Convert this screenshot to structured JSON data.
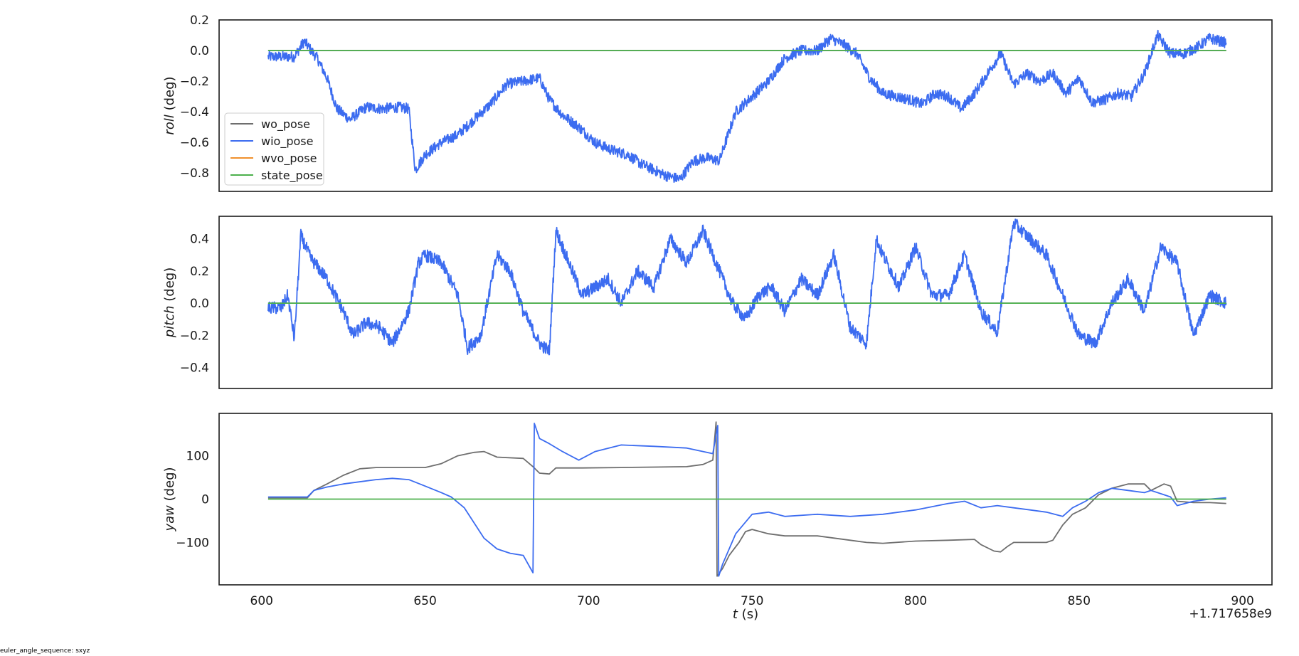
{
  "chart_data": {
    "type": "line",
    "x_offset_label": "+1.717658e9",
    "x_ticks": [
      600,
      650,
      700,
      750,
      800,
      850,
      900
    ],
    "xlim": [
      587,
      909
    ],
    "xlabel_var": "t",
    "xlabel_unit": " (s)",
    "legend": {
      "position": "lower-left of top subplot",
      "entries": [
        {
          "name": "wo_pose",
          "color": "#6e6e6e"
        },
        {
          "name": "wio_pose",
          "color": "#3c6cf0"
        },
        {
          "name": "wvo_pose",
          "color": "#f0902c"
        },
        {
          "name": "state_pose",
          "color": "#4cb04c"
        }
      ]
    },
    "subplots": [
      {
        "var": "roll",
        "unit": " (deg)",
        "ylim": [
          -0.92,
          0.2
        ],
        "yticks": [
          0.2,
          0.0,
          -0.2,
          -0.4,
          -0.6,
          -0.8
        ],
        "ytick_labels": [
          "0.2",
          "0.0",
          "−0.2",
          "−0.4",
          "−0.6",
          "−0.8"
        ],
        "series": [
          {
            "name": "wio_pose",
            "noise": 0.035,
            "x": [
              602,
              610,
              613,
              617,
              620,
              623,
              627,
              632,
              637,
              642,
              645,
              647,
              650,
              655,
              660,
              665,
              670,
              675,
              680,
              685,
              688,
              692,
              697,
              702,
              707,
              712,
              716,
              720,
              724,
              728,
              732,
              736,
              740,
              745,
              750,
              755,
              760,
              765,
              770,
              774,
              778,
              782,
              786,
              790,
              794,
              798,
              802,
              806,
              810,
              814,
              818,
              822,
              826,
              830,
              834,
              838,
              842,
              846,
              850,
              854,
              858,
              862,
              866,
              870,
              874,
              878,
              882,
              886,
              890,
              895
            ],
            "y": [
              -0.04,
              -0.04,
              0.06,
              -0.05,
              -0.18,
              -0.38,
              -0.45,
              -0.37,
              -0.38,
              -0.37,
              -0.38,
              -0.78,
              -0.68,
              -0.6,
              -0.55,
              -0.45,
              -0.35,
              -0.22,
              -0.2,
              -0.18,
              -0.32,
              -0.42,
              -0.5,
              -0.6,
              -0.65,
              -0.68,
              -0.74,
              -0.78,
              -0.82,
              -0.84,
              -0.72,
              -0.7,
              -0.72,
              -0.4,
              -0.3,
              -0.2,
              -0.05,
              0.0,
              0.0,
              0.08,
              0.04,
              -0.02,
              -0.18,
              -0.28,
              -0.3,
              -0.32,
              -0.35,
              -0.28,
              -0.3,
              -0.38,
              -0.28,
              -0.15,
              -0.02,
              -0.22,
              -0.15,
              -0.2,
              -0.15,
              -0.28,
              -0.18,
              -0.34,
              -0.32,
              -0.28,
              -0.3,
              -0.15,
              0.1,
              -0.02,
              -0.02,
              0.02,
              0.08,
              0.05
            ]
          },
          {
            "name": "wo_pose",
            "noise": 0,
            "x": [
              602,
              895
            ],
            "y": [
              0.0,
              0.0
            ]
          },
          {
            "name": "state_pose",
            "noise": 0,
            "x": [
              602,
              895
            ],
            "y": [
              0.0,
              0.0
            ]
          }
        ]
      },
      {
        "var": "pitch",
        "unit": " (deg)",
        "ylim": [
          -0.53,
          0.54
        ],
        "yticks": [
          0.4,
          0.2,
          0.0,
          -0.2,
          -0.4
        ],
        "ytick_labels": [
          "0.4",
          "0.2",
          "0.0",
          "−0.2",
          "−0.4"
        ],
        "series": [
          {
            "name": "wio_pose",
            "noise": 0.04,
            "x": [
              602,
              606,
              608,
              610,
              612,
              615,
              620,
              625,
              628,
              632,
              636,
              640,
              645,
              648,
              650,
              655,
              660,
              663,
              667,
              672,
              676,
              680,
              685,
              688,
              690,
              693,
              698,
              702,
              706,
              710,
              715,
              720,
              725,
              730,
              735,
              740,
              744,
              748,
              752,
              756,
              760,
              765,
              770,
              775,
              780,
              785,
              788,
              790,
              795,
              800,
              805,
              810,
              815,
              820,
              825,
              830,
              835,
              840,
              845,
              850,
              855,
              860,
              865,
              870,
              875,
              880,
              885,
              890,
              895
            ],
            "y": [
              -0.03,
              -0.03,
              0.05,
              -0.22,
              0.42,
              0.28,
              0.15,
              -0.05,
              -0.2,
              -0.12,
              -0.15,
              -0.25,
              -0.05,
              0.25,
              0.3,
              0.25,
              0.05,
              -0.28,
              -0.2,
              0.3,
              0.2,
              -0.05,
              -0.25,
              -0.3,
              0.45,
              0.3,
              0.05,
              0.1,
              0.15,
              0.0,
              0.2,
              0.1,
              0.4,
              0.25,
              0.45,
              0.2,
              0.0,
              -0.1,
              0.05,
              0.1,
              -0.05,
              0.15,
              0.05,
              0.3,
              -0.15,
              -0.25,
              0.4,
              0.3,
              0.1,
              0.35,
              0.05,
              0.05,
              0.3,
              -0.05,
              -0.18,
              0.5,
              0.4,
              0.3,
              0.05,
              -0.2,
              -0.25,
              0.0,
              0.15,
              -0.05,
              0.35,
              0.25,
              -0.2,
              0.05,
              0.0
            ]
          },
          {
            "name": "wo_pose",
            "noise": 0,
            "x": [
              602,
              895
            ],
            "y": [
              0.0,
              0.0
            ]
          },
          {
            "name": "state_pose",
            "noise": 0,
            "x": [
              602,
              895
            ],
            "y": [
              0.0,
              0.0
            ]
          }
        ]
      },
      {
        "var": "yaw",
        "unit": " (deg)",
        "ylim": [
          -198,
          198
        ],
        "yticks": [
          100,
          0,
          -100
        ],
        "ytick_labels": [
          "100",
          "0",
          "−100"
        ],
        "series": [
          {
            "name": "wo_pose",
            "noise": 0,
            "x": [
              602,
              614,
              616,
              620,
              625,
              630,
              635,
              650,
              655,
              660,
              665,
              668,
              672,
              680,
              683,
              685,
              688,
              690,
              698,
              710,
              720,
              730,
              735,
              738,
              739,
              739.3,
              741,
              743,
              746,
              748,
              750,
              755,
              760,
              770,
              780,
              785,
              790,
              800,
              810,
              818,
              820,
              824,
              826,
              828,
              830,
              840,
              842,
              845,
              848,
              852,
              856,
              860,
              865,
              870,
              872,
              876,
              878,
              880,
              885,
              890,
              895
            ],
            "y": [
              3,
              3,
              20,
              35,
              55,
              70,
              73,
              73,
              82,
              100,
              108,
              110,
              97,
              94,
              75,
              60,
              58,
              72,
              72,
              73,
              74,
              75,
              80,
              90,
              178,
              -178,
              -160,
              -130,
              -100,
              -75,
              -70,
              -80,
              -85,
              -85,
              -95,
              -100,
              -102,
              -97,
              -95,
              -93,
              -105,
              -120,
              -122,
              -110,
              -100,
              -100,
              -95,
              -60,
              -35,
              -20,
              10,
              25,
              35,
              35,
              20,
              35,
              30,
              -5,
              -8,
              -8,
              -10
            ]
          },
          {
            "name": "wio_pose",
            "noise": 0,
            "x": [
              602,
              614,
              616,
              620,
              625,
              635,
              640,
              645,
              650,
              655,
              658,
              662,
              665,
              668,
              672,
              676,
              680,
              683,
              683.4,
              685,
              688,
              692,
              697,
              702,
              710,
              720,
              730,
              735,
              738,
              739.5,
              739.8,
              741,
              745,
              750,
              755,
              760,
              770,
              780,
              790,
              800,
              810,
              815,
              820,
              825,
              830,
              835,
              840,
              845,
              848,
              852,
              856,
              860,
              865,
              870,
              872,
              876,
              878,
              880,
              885,
              890,
              895
            ],
            "y": [
              5,
              5,
              20,
              28,
              35,
              45,
              48,
              45,
              30,
              15,
              5,
              -20,
              -55,
              -90,
              -115,
              -125,
              -130,
              -170,
              175,
              140,
              128,
              110,
              90,
              110,
              125,
              122,
              118,
              110,
              105,
              170,
              -178,
              -150,
              -80,
              -35,
              -30,
              -40,
              -35,
              -40,
              -35,
              -25,
              -10,
              -5,
              -20,
              -15,
              -20,
              -25,
              -30,
              -40,
              -20,
              -5,
              15,
              25,
              20,
              15,
              20,
              10,
              5,
              -15,
              -5,
              0,
              3
            ]
          },
          {
            "name": "state_pose",
            "noise": 0,
            "x": [
              602,
              895
            ],
            "y": [
              0,
              0
            ]
          }
        ]
      }
    ]
  },
  "footer": {
    "euler_note": "euler_angle_sequence: sxyz"
  }
}
